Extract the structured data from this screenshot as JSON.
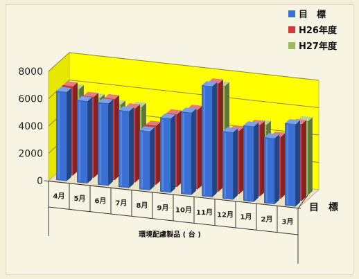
{
  "chart_data": {
    "type": "bar",
    "subtype": "3d-clustered-column",
    "categories": [
      "4月",
      "5月",
      "6月",
      "7月",
      "8月",
      "9月",
      "10月",
      "11月",
      "12月",
      "1月",
      "2月",
      "3月"
    ],
    "series": [
      {
        "name": "目　標",
        "color": "#3a6fd3",
        "values": [
          6500,
          6000,
          6000,
          5600,
          4300,
          5400,
          6000,
          8100,
          4900,
          5500,
          4800,
          6000
        ]
      },
      {
        "name": "H26年度",
        "color": "#d2393a",
        "values": [
          6500,
          5900,
          5900,
          5400,
          4300,
          5300,
          5800,
          7900,
          4600,
          5200,
          4500,
          5600
        ]
      },
      {
        "name": "H27年度",
        "color": "#9bbb59",
        "values": [
          5900,
          5400,
          5100,
          5100,
          3800,
          4800,
          5300,
          7300,
          4000,
          4800,
          4100,
          5400
        ]
      }
    ],
    "y_ticks": [
      "8000",
      "6000",
      "4000",
      "2000",
      "0"
    ],
    "ylim": [
      0,
      8000
    ],
    "xlabel": "環境配慮製品 ( 台 )",
    "depth_label": "目　標",
    "wall_color": "#ffff00",
    "grid": true,
    "legend_position": "top-right"
  }
}
